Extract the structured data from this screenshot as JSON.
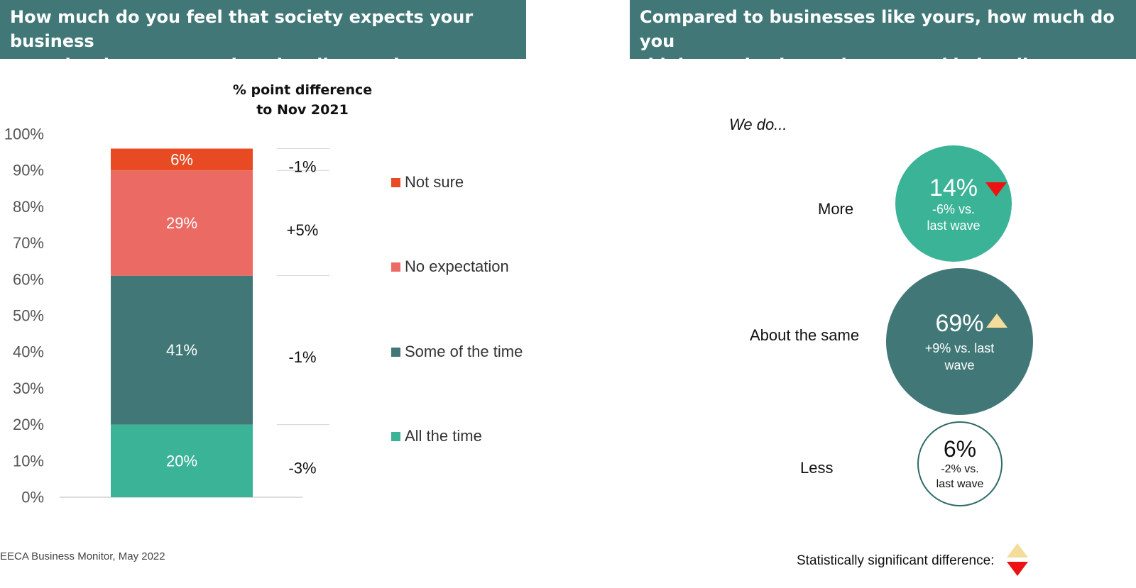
{
  "left_question": "How much do you feel that society expects your business\nto make changes to reduce its climate change impact?",
  "right_question": "Compared to businesses like yours, how much do you\nthink your business does to tackle its climate impact?",
  "diff_header": "% point difference\nto Nov 2021",
  "source": "EECA Business Monitor, May 2022",
  "colors": {
    "header_bg": "#417877",
    "not_sure": "#e84b23",
    "no_expectation": "#ec6a64",
    "some_of_the_time": "#417877",
    "all_the_time": "#3ab397",
    "sig_up": "#f4dc9a",
    "sig_down": "#ee1111"
  },
  "chart_data": [
    {
      "type": "bar",
      "stacked": true,
      "y_ticks": [
        "0%",
        "10%",
        "20%",
        "30%",
        "40%",
        "50%",
        "60%",
        "70%",
        "80%",
        "90%",
        "100%"
      ],
      "ylim": [
        0,
        100
      ],
      "series": [
        {
          "name": "All the time",
          "value": 20,
          "label": "20%",
          "diff": "-3%",
          "color": "#3ab397"
        },
        {
          "name": "Some of the time",
          "value": 41,
          "label": "41%",
          "diff": "-1%",
          "color": "#417877"
        },
        {
          "name": "No expectation",
          "value": 29,
          "label": "29%",
          "diff": "+5%",
          "color": "#ec6a64"
        },
        {
          "name": "Not sure",
          "value": 6,
          "label": "6%",
          "diff": "-1%",
          "color": "#e84b23"
        }
      ],
      "legend_order": [
        "Not sure",
        "No expectation",
        "Some of the time",
        "All the time"
      ]
    },
    {
      "type": "bubble",
      "intro": "We do...",
      "items": [
        {
          "label": "More",
          "value": 14,
          "pct": "14%",
          "change": "-6% vs.\nlast wave",
          "significant": "down"
        },
        {
          "label": "About the same",
          "value": 69,
          "pct": "69%",
          "change": "+9% vs. last\nwave",
          "significant": "up"
        },
        {
          "label": "Less",
          "value": 6,
          "pct": "6%",
          "change": "-2% vs.\nlast wave",
          "significant": "none"
        }
      ]
    }
  ],
  "significance_legend": "Statistically significant difference:"
}
